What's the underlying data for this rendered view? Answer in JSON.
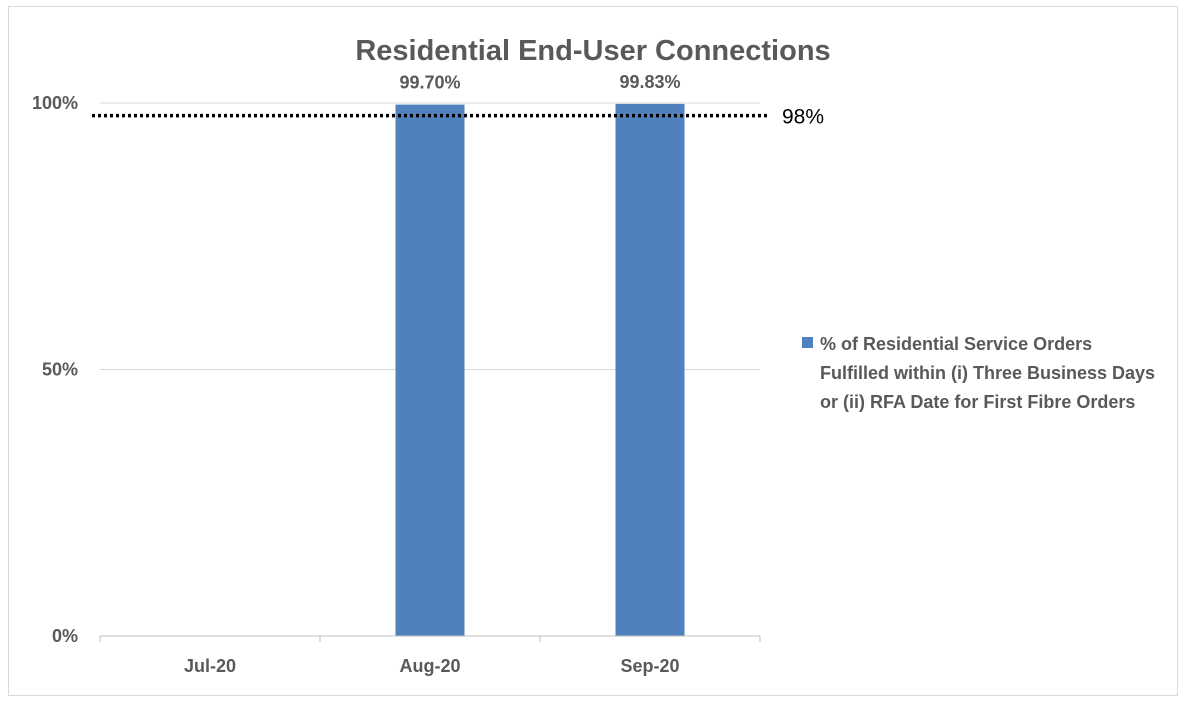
{
  "chart_data": {
    "type": "bar",
    "title": "Residential End-User Connections",
    "categories": [
      "Jul-20",
      "Aug-20",
      "Sep-20"
    ],
    "series": [
      {
        "name": "% of Residential Service Orders Fulfilled within (i) Three Business Days or (ii) RFA Date for First Fibre Orders",
        "values": [
          null,
          99.7,
          99.83
        ],
        "data_labels": [
          "",
          "99.70%",
          "99.83%"
        ],
        "color": "#4f81bd"
      }
    ],
    "ylim": [
      0,
      100
    ],
    "yticks": [
      0,
      50,
      100
    ],
    "ytick_labels": [
      "0%",
      "50%",
      "100%"
    ],
    "xlabel": "",
    "ylabel": "",
    "target": {
      "value": 98,
      "label": "98%",
      "style": "dotted",
      "color": "#000000"
    },
    "grid": true,
    "legend_position": "right"
  }
}
